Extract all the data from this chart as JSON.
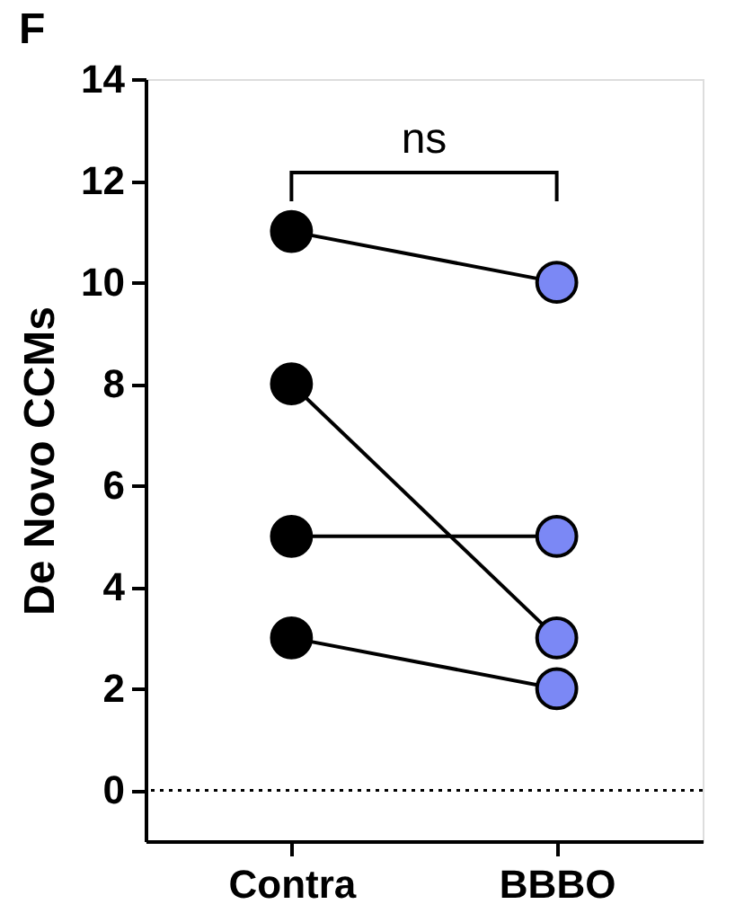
{
  "chart_data": {
    "type": "line",
    "title": "F",
    "ylabel": "De Novo CCMs",
    "categories": [
      "Contra",
      "BBBO"
    ],
    "series": [
      {
        "color": "#000000",
        "colors": [
          "#000000",
          "#7b88f5"
        ],
        "values": [
          11,
          10
        ]
      },
      {
        "color": "#000000",
        "colors": [
          "#000000",
          "#7b88f5"
        ],
        "values": [
          8,
          3
        ]
      },
      {
        "color": "#000000",
        "colors": [
          "#000000",
          "#7b88f5"
        ],
        "values": [
          5,
          5
        ]
      },
      {
        "color": "#000000",
        "colors": [
          "#000000",
          "#7b88f5"
        ],
        "values": [
          3,
          2
        ]
      }
    ],
    "marker": "circle",
    "ylim": [
      -1,
      14
    ],
    "yticks": [
      0,
      2,
      4,
      6,
      8,
      10,
      12,
      14
    ],
    "grid": false,
    "ref_lines": [
      {
        "axis": "y",
        "value": 0,
        "line_style": "dotted",
        "color": "#000000"
      }
    ],
    "annotations": [
      "ns"
    ]
  }
}
